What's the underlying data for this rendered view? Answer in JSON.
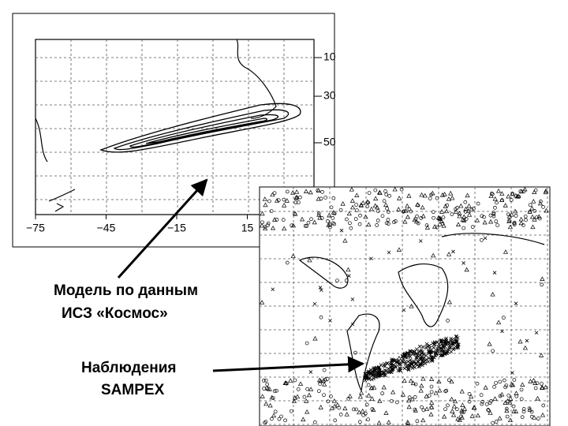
{
  "map_top": {
    "x_labels": [
      "−75",
      "−45",
      "−15",
      "15"
    ],
    "y_labels": [
      "10",
      "30",
      "50"
    ]
  },
  "annotations": [
    {
      "lines": [
        "Модель по данным",
        "ИСЗ «Космос»"
      ]
    },
    {
      "lines": [
        "Наблюдения",
        "SAMPEX"
      ]
    }
  ]
}
